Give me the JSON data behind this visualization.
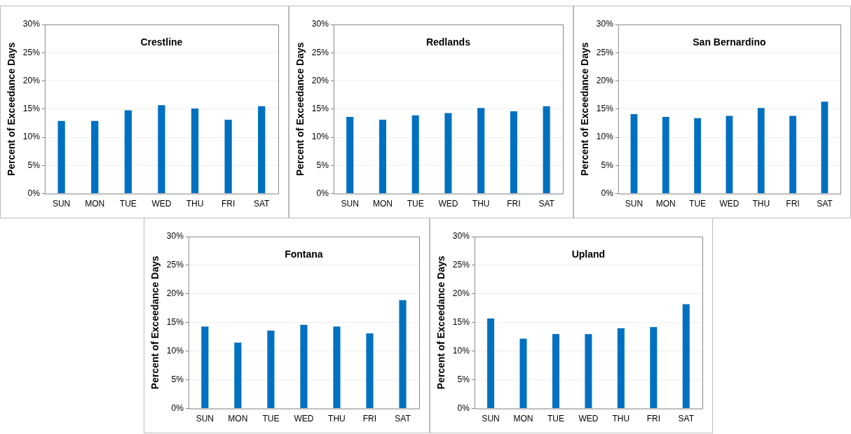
{
  "chart_data": [
    {
      "type": "bar",
      "title": "Crestline",
      "ylabel": "Percent of Exceedance Days",
      "categories": [
        "SUN",
        "MON",
        "TUE",
        "WED",
        "THU",
        "FRI",
        "SAT"
      ],
      "values": [
        12.9,
        12.9,
        14.8,
        15.7,
        15.1,
        13.1,
        15.5
      ],
      "color": "#0070c0",
      "ylim": [
        0,
        30
      ],
      "yticks": [
        {
          "value": 0,
          "label": "0%"
        },
        {
          "value": 5,
          "label": "5%"
        },
        {
          "value": 10,
          "label": "10%"
        },
        {
          "value": 15,
          "label": "15%"
        },
        {
          "value": 20,
          "label": "20%"
        },
        {
          "value": 25,
          "label": "25%"
        },
        {
          "value": 30,
          "label": "30%"
        }
      ],
      "grid": "y",
      "legend": false
    },
    {
      "type": "bar",
      "title": "Redlands",
      "ylabel": "Percent of Exceedance Days",
      "categories": [
        "SUN",
        "MON",
        "TUE",
        "WED",
        "THU",
        "FRI",
        "SAT"
      ],
      "values": [
        13.6,
        13.1,
        13.9,
        14.3,
        15.2,
        14.6,
        15.5
      ],
      "color": "#0070c0",
      "ylim": [
        0,
        30
      ],
      "yticks": [
        {
          "value": 0,
          "label": "0%"
        },
        {
          "value": 5,
          "label": "5%"
        },
        {
          "value": 10,
          "label": "10%"
        },
        {
          "value": 15,
          "label": "15%"
        },
        {
          "value": 20,
          "label": "20%"
        },
        {
          "value": 25,
          "label": "25%"
        },
        {
          "value": 30,
          "label": "30%"
        }
      ],
      "grid": "y",
      "legend": false
    },
    {
      "type": "bar",
      "title": "San Bernardino",
      "ylabel": "Percent of Exceedance Days",
      "categories": [
        "SUN",
        "MON",
        "TUE",
        "WED",
        "THU",
        "FRI",
        "SAT"
      ],
      "values": [
        14.1,
        13.6,
        13.4,
        13.8,
        15.2,
        13.8,
        16.3
      ],
      "color": "#0070c0",
      "ylim": [
        0,
        30
      ],
      "yticks": [
        {
          "value": 0,
          "label": "0%"
        },
        {
          "value": 5,
          "label": "5%"
        },
        {
          "value": 10,
          "label": "10%"
        },
        {
          "value": 15,
          "label": "15%"
        },
        {
          "value": 20,
          "label": "20%"
        },
        {
          "value": 25,
          "label": "25%"
        },
        {
          "value": 30,
          "label": "30%"
        }
      ],
      "grid": "y",
      "legend": false
    },
    {
      "type": "bar",
      "title": "Fontana",
      "ylabel": "Percent of Exceedance Days",
      "categories": [
        "SUN",
        "MON",
        "TUE",
        "WED",
        "THU",
        "FRI",
        "SAT"
      ],
      "values": [
        14.3,
        11.5,
        13.6,
        14.6,
        14.3,
        13.1,
        18.9
      ],
      "color": "#0070c0",
      "ylim": [
        0,
        30
      ],
      "yticks": [
        {
          "value": 0,
          "label": "0%"
        },
        {
          "value": 5,
          "label": "5%"
        },
        {
          "value": 10,
          "label": "10%"
        },
        {
          "value": 15,
          "label": "15%"
        },
        {
          "value": 20,
          "label": "20%"
        },
        {
          "value": 25,
          "label": "25%"
        },
        {
          "value": 30,
          "label": "30%"
        }
      ],
      "grid": "y",
      "legend": false
    },
    {
      "type": "bar",
      "title": "Upland",
      "ylabel": "Percent of Exceedance Days",
      "categories": [
        "SUN",
        "MON",
        "TUE",
        "WED",
        "THU",
        "FRI",
        "SAT"
      ],
      "values": [
        15.7,
        12.2,
        13.0,
        13.0,
        14.0,
        14.2,
        18.2
      ],
      "color": "#0070c0",
      "ylim": [
        0,
        30
      ],
      "yticks": [
        {
          "value": 0,
          "label": "0%"
        },
        {
          "value": 5,
          "label": "5%"
        },
        {
          "value": 10,
          "label": "10%"
        },
        {
          "value": 15,
          "label": "15%"
        },
        {
          "value": 20,
          "label": "20%"
        },
        {
          "value": 25,
          "label": "25%"
        },
        {
          "value": 30,
          "label": "30%"
        }
      ],
      "grid": "y",
      "legend": false
    }
  ]
}
